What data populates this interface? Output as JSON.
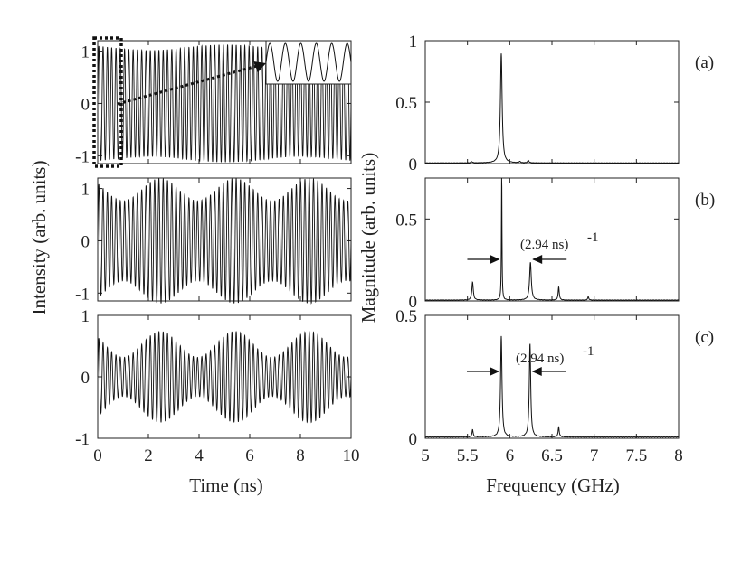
{
  "chart_data": [
    {
      "id": "time-a",
      "type": "line",
      "xlabel": "",
      "ylabel": "",
      "xlim": [
        0,
        10
      ],
      "ylim": [
        -1.15,
        1.2
      ],
      "yticks": [
        "1",
        "0",
        "-1"
      ],
      "xticks": [],
      "signal": {
        "carrier_GHz": 5.9,
        "mean_amplitude": 1.07,
        "modulation_depth": 0.05,
        "modulation_period_ns": 6.0
      },
      "inset": "zoom of 0-1 ns window (dotted box)"
    },
    {
      "id": "time-b",
      "type": "line",
      "xlabel": "",
      "ylabel": "",
      "xlim": [
        0,
        10
      ],
      "ylim": [
        -1.15,
        1.2
      ],
      "yticks": [
        "1",
        "0",
        "-1"
      ],
      "xticks": [],
      "signal": {
        "carrier_GHz": 5.9,
        "mean_amplitude": 0.98,
        "modulation_depth": 0.22,
        "modulation_period_ns": 2.94
      }
    },
    {
      "id": "time-c",
      "type": "line",
      "xlabel": "Time (ns)",
      "ylabel": "",
      "xlim": [
        0,
        10
      ],
      "ylim": [
        -1,
        1
      ],
      "yticks": [
        "1",
        "0",
        "-1"
      ],
      "xticks": [
        "0",
        "2",
        "4",
        "6",
        "8",
        "10"
      ],
      "signal": {
        "carrier_GHz": 5.9,
        "mean_amplitude": 0.53,
        "modulation_depth": 0.4,
        "modulation_period_ns": 2.94
      }
    },
    {
      "id": "spec-a",
      "type": "line",
      "label": "(a)",
      "xlim": [
        5,
        8
      ],
      "ylim": [
        0,
        1
      ],
      "yticks": [
        "1",
        "0.5",
        "0"
      ],
      "xticks": [],
      "peaks": [
        {
          "f": 5.9,
          "mag": 0.89,
          "width": 0.012
        },
        {
          "f": 6.22,
          "mag": 0.02,
          "width": 0.01
        },
        {
          "f": 6.12,
          "mag": 0.01,
          "width": 0.01
        },
        {
          "f": 5.55,
          "mag": 0.01,
          "width": 0.01
        }
      ]
    },
    {
      "id": "spec-b",
      "type": "line",
      "label": "(b)",
      "xlim": [
        5,
        8
      ],
      "ylim": [
        0,
        0.75
      ],
      "yticks": [
        "0.5",
        "0"
      ],
      "xticks": [],
      "peaks": [
        {
          "f": 5.905,
          "mag": 0.78,
          "width": 0.004
        },
        {
          "f": 6.245,
          "mag": 0.23,
          "width": 0.012
        },
        {
          "f": 5.56,
          "mag": 0.11,
          "width": 0.01
        },
        {
          "f": 6.58,
          "mag": 0.08,
          "width": 0.008
        },
        {
          "f": 6.93,
          "mag": 0.02,
          "width": 0.008
        }
      ],
      "annotation": "(2.94 ns)",
      "annotation_sup": "-1"
    },
    {
      "id": "spec-c",
      "type": "line",
      "label": "(c)",
      "xlabel": "Frequency (GHz)",
      "xlim": [
        5,
        8
      ],
      "ylim": [
        0,
        0.5
      ],
      "yticks": [
        "0.5",
        "0"
      ],
      "xticks": [
        "5",
        "5.5",
        "6",
        "6.5",
        "7",
        "7.5",
        "8"
      ],
      "peaks": [
        {
          "f": 5.9,
          "mag": 0.41,
          "width": 0.01
        },
        {
          "f": 6.24,
          "mag": 0.38,
          "width": 0.01
        },
        {
          "f": 5.56,
          "mag": 0.03,
          "width": 0.008
        },
        {
          "f": 6.58,
          "mag": 0.04,
          "width": 0.008
        }
      ],
      "annotation": "(2.94 ns)",
      "annotation_sup": "-1"
    }
  ],
  "labels": {
    "left_ylabel": "Intensity (arb. units)",
    "right_ylabel": "Magnitude (arb. units)"
  }
}
